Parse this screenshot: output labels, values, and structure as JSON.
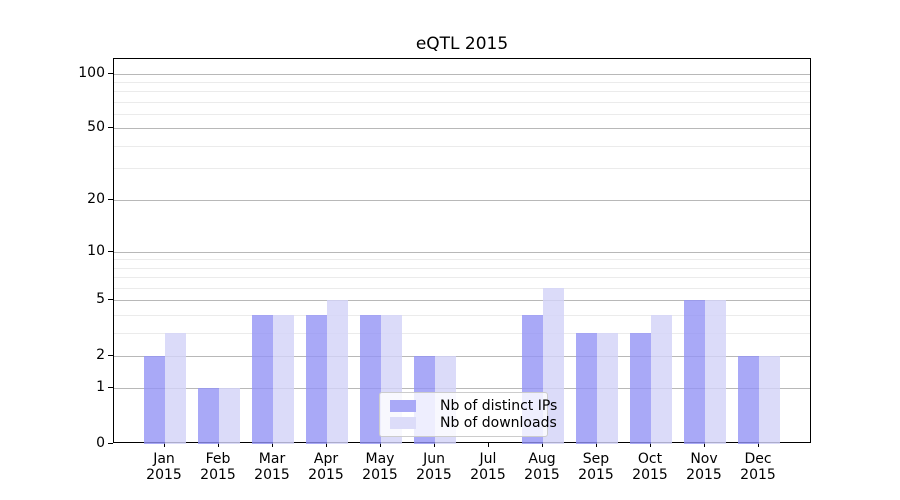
{
  "chart_data": {
    "type": "bar",
    "title": "eQTL 2015",
    "categories": [
      {
        "month": "Jan",
        "year": "2015"
      },
      {
        "month": "Feb",
        "year": "2015"
      },
      {
        "month": "Mar",
        "year": "2015"
      },
      {
        "month": "Apr",
        "year": "2015"
      },
      {
        "month": "May",
        "year": "2015"
      },
      {
        "month": "Jun",
        "year": "2015"
      },
      {
        "month": "Jul",
        "year": "2015"
      },
      {
        "month": "Aug",
        "year": "2015"
      },
      {
        "month": "Sep",
        "year": "2015"
      },
      {
        "month": "Oct",
        "year": "2015"
      },
      {
        "month": "Nov",
        "year": "2015"
      },
      {
        "month": "Dec",
        "year": "2015"
      }
    ],
    "series": [
      {
        "name": "Nb of distinct IPs",
        "values": [
          2,
          1,
          4,
          4,
          4,
          2,
          0,
          4,
          3,
          3,
          5,
          2
        ]
      },
      {
        "name": "Nb of downloads",
        "values": [
          3,
          1,
          4,
          5,
          4,
          2,
          0,
          6,
          3,
          4,
          5,
          2
        ]
      }
    ],
    "y_axis": {
      "scale": "log1p",
      "ticks": [
        0,
        1,
        2,
        5,
        10,
        20,
        50,
        100
      ],
      "minor_gridlines": [
        3,
        4,
        6,
        7,
        8,
        9,
        30,
        40,
        60,
        70,
        80,
        90
      ],
      "max": 120
    },
    "xlabel": "",
    "ylabel": "",
    "grid": true,
    "legend_position": "lower center"
  },
  "colors": {
    "bar_distinct_ips": "rgba(148,148,245,0.8)",
    "bar_downloads": "rgba(211,211,248,0.82)",
    "swatch_distinct_ips": "#a9a9f7",
    "swatch_downloads": "#dcdcf9",
    "grid_major": "#b8b8b8",
    "grid_minor": "#ebebeb",
    "spine": "#000000"
  }
}
